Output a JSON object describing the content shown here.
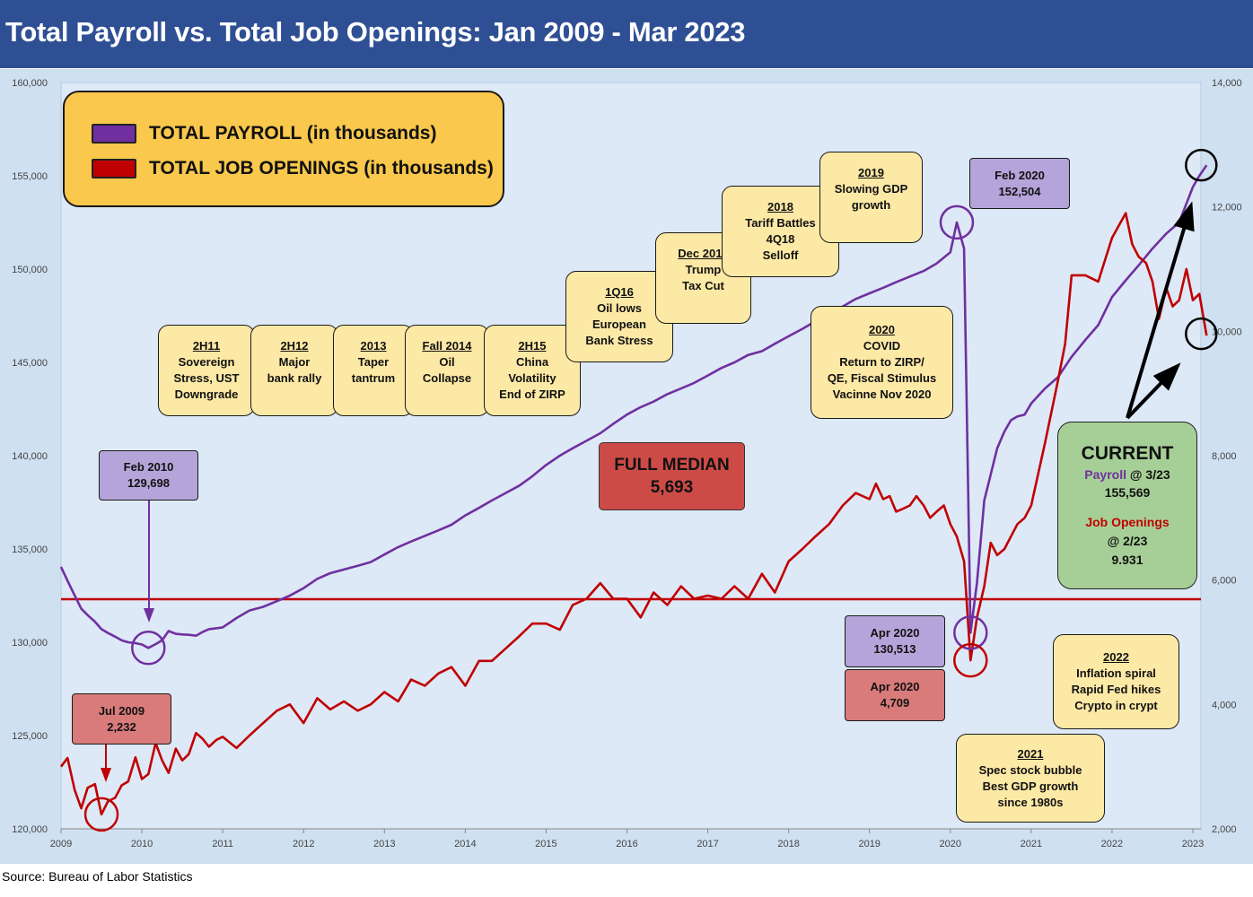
{
  "title": "Total Payroll vs. Total Job Openings: Jan 2009 - Mar 2023",
  "source": "Source: Bureau of Labor Statistics",
  "colors": {
    "header": "#2e4f94",
    "plot_bg": "#dde9f6",
    "frame_bg": "#cfe0f1",
    "payroll": "#7030a0",
    "openings": "#c00000",
    "median_line": "#c00000",
    "legend_bg": "#f9c84c",
    "annotation_bg": "#fde9a6",
    "current_bg": "#a6cf97",
    "median_box_bg": "#cd4b47"
  },
  "legend": {
    "payroll_label": "TOTAL PAYROLL (in thousands)",
    "openings_label": "TOTAL JOB OPENINGS (in thousands)"
  },
  "median": {
    "title": "FULL MEDIAN",
    "value": "5,693"
  },
  "current": {
    "title": "CURRENT",
    "payroll_label": "Payroll",
    "payroll_date": " @ 3/23",
    "payroll_value": "155,569",
    "openings_label": "Job Openings",
    "openings_date": "@ 2/23",
    "openings_value": "9.931"
  },
  "annotations": {
    "a2h11": {
      "head": "2H11",
      "l1": "Sovereign",
      "l2": "Stress, UST",
      "l3": "Downgrade"
    },
    "a2h12": {
      "head": "2H12",
      "l1": "Major",
      "l2": "bank rally"
    },
    "a2013": {
      "head": "2013",
      "l1": "Taper",
      "l2": "tantrum"
    },
    "afall2014": {
      "head": "Fall 2014",
      "l1": "Oil",
      "l2": "Collapse"
    },
    "a2h15": {
      "head": "2H15",
      "l1": "China",
      "l2": "Volatility",
      "l3": "End of ZIRP"
    },
    "a1q16": {
      "head": "1Q16",
      "l1": "Oil lows",
      "l2": "European",
      "l3": "Bank Stress"
    },
    "adec2017": {
      "head": "Dec 2017",
      "l1": "Trump",
      "l2": "Tax Cut"
    },
    "a2018": {
      "head": "2018",
      "l1": "Tariff Battles",
      "l2": "4Q18",
      "l3": "Selloff"
    },
    "a2019": {
      "head": "2019",
      "l1": "Slowing GDP",
      "l2": "growth"
    },
    "a2020": {
      "head": "2020",
      "l1": "COVID",
      "l2": "Return to ZIRP/",
      "l3": "QE, Fiscal Stimulus",
      "l4": "Vacinne Nov 2020"
    },
    "a2021": {
      "head": "2021",
      "l1": "Spec stock bubble",
      "l2": "Best GDP growth",
      "l3": "since 1980s"
    },
    "a2022": {
      "head": "2022",
      "l1": "Inflation spiral",
      "l2": "Rapid Fed hikes",
      "l3": "Crypto in crypt"
    },
    "feb2010": {
      "l1": "Feb 2010",
      "l2": "129,698"
    },
    "feb2020": {
      "l1": "Feb 2020",
      "l2": "152,504"
    },
    "apr2020p": {
      "l1": "Apr 2020",
      "l2": "130,513"
    },
    "apr2020o": {
      "l1": "Apr 2020",
      "l2": "4,709"
    },
    "jul2009": {
      "l1": "Jul 2009",
      "l2": "2,232"
    }
  },
  "chart_data": {
    "type": "line",
    "title": "Total Payroll vs. Total Job Openings: Jan 2009 - Mar 2023",
    "x_tick_labels": [
      "2009",
      "2010",
      "2011",
      "2012",
      "2013",
      "2014",
      "2015",
      "2016",
      "2017",
      "2018",
      "2019",
      "2020",
      "2021",
      "2022",
      "2023"
    ],
    "y_left": {
      "label": "",
      "ylim": [
        120000,
        160000
      ],
      "ticks": [
        "120,000",
        "125,000",
        "130,000",
        "135,000",
        "140,000",
        "145,000",
        "150,000",
        "155,000",
        "160,000"
      ]
    },
    "y_right": {
      "label": "",
      "ylim": [
        2000,
        14000
      ],
      "ticks": [
        "2,000",
        "4,000",
        "6,000",
        "8,000",
        "10,000",
        "12,000",
        "14,000"
      ]
    },
    "grid": false,
    "legend_position": "top-left",
    "median_line": 5693,
    "series": [
      {
        "name": "TOTAL PAYROLL (in thousands)",
        "axis": "left",
        "points": [
          [
            2009.0,
            134040
          ],
          [
            2009.08,
            133300
          ],
          [
            2009.17,
            132500
          ],
          [
            2009.25,
            131800
          ],
          [
            2009.33,
            131450
          ],
          [
            2009.42,
            131100
          ],
          [
            2009.5,
            130700
          ],
          [
            2009.58,
            130500
          ],
          [
            2009.67,
            130300
          ],
          [
            2009.75,
            130100
          ],
          [
            2009.83,
            130000
          ],
          [
            2009.92,
            129950
          ],
          [
            2010.0,
            129880
          ],
          [
            2010.08,
            129698
          ],
          [
            2010.17,
            129900
          ],
          [
            2010.25,
            130100
          ],
          [
            2010.33,
            130600
          ],
          [
            2010.42,
            130450
          ],
          [
            2010.5,
            130420
          ],
          [
            2010.58,
            130400
          ],
          [
            2010.67,
            130350
          ],
          [
            2010.75,
            130550
          ],
          [
            2010.83,
            130700
          ],
          [
            2010.92,
            130750
          ],
          [
            2011.0,
            130800
          ],
          [
            2011.17,
            131300
          ],
          [
            2011.33,
            131700
          ],
          [
            2011.5,
            131900
          ],
          [
            2011.67,
            132200
          ],
          [
            2011.83,
            132500
          ],
          [
            2012.0,
            132900
          ],
          [
            2012.17,
            133400
          ],
          [
            2012.33,
            133700
          ],
          [
            2012.5,
            133900
          ],
          [
            2012.67,
            134100
          ],
          [
            2012.83,
            134300
          ],
          [
            2013.0,
            134700
          ],
          [
            2013.17,
            135100
          ],
          [
            2013.33,
            135400
          ],
          [
            2013.5,
            135700
          ],
          [
            2013.67,
            136000
          ],
          [
            2013.83,
            136300
          ],
          [
            2014.0,
            136800
          ],
          [
            2014.17,
            137200
          ],
          [
            2014.33,
            137600
          ],
          [
            2014.5,
            138000
          ],
          [
            2014.67,
            138400
          ],
          [
            2014.83,
            138900
          ],
          [
            2015.0,
            139500
          ],
          [
            2015.17,
            140000
          ],
          [
            2015.33,
            140400
          ],
          [
            2015.5,
            140800
          ],
          [
            2015.67,
            141200
          ],
          [
            2015.83,
            141700
          ],
          [
            2016.0,
            142200
          ],
          [
            2016.17,
            142600
          ],
          [
            2016.33,
            142900
          ],
          [
            2016.5,
            143300
          ],
          [
            2016.67,
            143600
          ],
          [
            2016.83,
            143900
          ],
          [
            2017.0,
            144300
          ],
          [
            2017.17,
            144700
          ],
          [
            2017.33,
            145000
          ],
          [
            2017.5,
            145400
          ],
          [
            2017.67,
            145600
          ],
          [
            2017.83,
            146000
          ],
          [
            2018.0,
            146400
          ],
          [
            2018.17,
            146800
          ],
          [
            2018.33,
            147200
          ],
          [
            2018.5,
            147600
          ],
          [
            2018.67,
            148000
          ],
          [
            2018.83,
            148400
          ],
          [
            2019.0,
            148700
          ],
          [
            2019.17,
            149000
          ],
          [
            2019.33,
            149300
          ],
          [
            2019.5,
            149600
          ],
          [
            2019.67,
            149900
          ],
          [
            2019.83,
            150300
          ],
          [
            2020.0,
            150900
          ],
          [
            2020.08,
            152504
          ],
          [
            2020.17,
            151100
          ],
          [
            2020.25,
            130513
          ],
          [
            2020.33,
            133200
          ],
          [
            2020.42,
            137600
          ],
          [
            2020.5,
            139000
          ],
          [
            2020.58,
            140400
          ],
          [
            2020.67,
            141300
          ],
          [
            2020.75,
            141900
          ],
          [
            2020.83,
            142100
          ],
          [
            2020.92,
            142200
          ],
          [
            2021.0,
            142800
          ],
          [
            2021.17,
            143600
          ],
          [
            2021.33,
            144200
          ],
          [
            2021.5,
            145300
          ],
          [
            2021.67,
            146200
          ],
          [
            2021.83,
            147000
          ],
          [
            2022.0,
            148500
          ],
          [
            2022.17,
            149400
          ],
          [
            2022.33,
            150200
          ],
          [
            2022.5,
            151100
          ],
          [
            2022.67,
            151900
          ],
          [
            2022.83,
            152500
          ],
          [
            2023.0,
            154400
          ],
          [
            2023.08,
            155000
          ],
          [
            2023.17,
            155569
          ]
        ]
      },
      {
        "name": "TOTAL JOB OPENINGS (in thousands)",
        "axis": "right",
        "points": [
          [
            2009.0,
            3000
          ],
          [
            2009.08,
            3140
          ],
          [
            2009.17,
            2620
          ],
          [
            2009.25,
            2330
          ],
          [
            2009.33,
            2660
          ],
          [
            2009.42,
            2720
          ],
          [
            2009.5,
            2232
          ],
          [
            2009.58,
            2440
          ],
          [
            2009.67,
            2500
          ],
          [
            2009.75,
            2700
          ],
          [
            2009.83,
            2760
          ],
          [
            2009.92,
            3150
          ],
          [
            2010.0,
            2800
          ],
          [
            2010.08,
            2880
          ],
          [
            2010.17,
            3380
          ],
          [
            2010.25,
            3100
          ],
          [
            2010.33,
            2900
          ],
          [
            2010.42,
            3290
          ],
          [
            2010.5,
            3100
          ],
          [
            2010.58,
            3200
          ],
          [
            2010.67,
            3540
          ],
          [
            2010.75,
            3450
          ],
          [
            2010.83,
            3320
          ],
          [
            2010.92,
            3430
          ],
          [
            2011.0,
            3480
          ],
          [
            2011.17,
            3300
          ],
          [
            2011.33,
            3500
          ],
          [
            2011.5,
            3700
          ],
          [
            2011.67,
            3900
          ],
          [
            2011.83,
            4000
          ],
          [
            2012.0,
            3700
          ],
          [
            2012.17,
            4100
          ],
          [
            2012.33,
            3920
          ],
          [
            2012.5,
            4050
          ],
          [
            2012.67,
            3900
          ],
          [
            2012.83,
            4000
          ],
          [
            2013.0,
            4200
          ],
          [
            2013.17,
            4050
          ],
          [
            2013.33,
            4400
          ],
          [
            2013.5,
            4300
          ],
          [
            2013.67,
            4500
          ],
          [
            2013.83,
            4600
          ],
          [
            2014.0,
            4300
          ],
          [
            2014.17,
            4700
          ],
          [
            2014.33,
            4700
          ],
          [
            2014.5,
            4900
          ],
          [
            2014.67,
            5100
          ],
          [
            2014.83,
            5300
          ],
          [
            2015.0,
            5300
          ],
          [
            2015.17,
            5200
          ],
          [
            2015.33,
            5600
          ],
          [
            2015.5,
            5700
          ],
          [
            2015.67,
            5950
          ],
          [
            2015.83,
            5700
          ],
          [
            2016.0,
            5700
          ],
          [
            2016.17,
            5400
          ],
          [
            2016.33,
            5800
          ],
          [
            2016.5,
            5600
          ],
          [
            2016.67,
            5900
          ],
          [
            2016.83,
            5700
          ],
          [
            2017.0,
            5750
          ],
          [
            2017.17,
            5700
          ],
          [
            2017.33,
            5900
          ],
          [
            2017.5,
            5700
          ],
          [
            2017.67,
            6100
          ],
          [
            2017.83,
            5800
          ],
          [
            2018.0,
            6300
          ],
          [
            2018.17,
            6500
          ],
          [
            2018.33,
            6700
          ],
          [
            2018.5,
            6900
          ],
          [
            2018.67,
            7200
          ],
          [
            2018.83,
            7400
          ],
          [
            2019.0,
            7300
          ],
          [
            2019.08,
            7550
          ],
          [
            2019.17,
            7300
          ],
          [
            2019.25,
            7350
          ],
          [
            2019.33,
            7100
          ],
          [
            2019.42,
            7150
          ],
          [
            2019.5,
            7200
          ],
          [
            2019.58,
            7350
          ],
          [
            2019.67,
            7200
          ],
          [
            2019.75,
            7000
          ],
          [
            2019.83,
            7100
          ],
          [
            2019.92,
            7200
          ],
          [
            2020.0,
            6900
          ],
          [
            2020.08,
            6700
          ],
          [
            2020.17,
            6300
          ],
          [
            2020.25,
            4709
          ],
          [
            2020.33,
            5400
          ],
          [
            2020.42,
            5900
          ],
          [
            2020.5,
            6600
          ],
          [
            2020.58,
            6400
          ],
          [
            2020.67,
            6500
          ],
          [
            2020.75,
            6700
          ],
          [
            2020.83,
            6900
          ],
          [
            2020.92,
            7000
          ],
          [
            2021.0,
            7200
          ],
          [
            2021.17,
            8200
          ],
          [
            2021.33,
            9200
          ],
          [
            2021.42,
            9800
          ],
          [
            2021.5,
            10900
          ],
          [
            2021.67,
            10900
          ],
          [
            2021.83,
            10800
          ],
          [
            2022.0,
            11500
          ],
          [
            2022.17,
            11900
          ],
          [
            2022.25,
            11400
          ],
          [
            2022.33,
            11200
          ],
          [
            2022.42,
            11100
          ],
          [
            2022.5,
            10800
          ],
          [
            2022.58,
            10200
          ],
          [
            2022.67,
            10700
          ],
          [
            2022.75,
            10400
          ],
          [
            2022.83,
            10500
          ],
          [
            2022.92,
            11000
          ],
          [
            2023.0,
            10500
          ],
          [
            2023.08,
            10600
          ],
          [
            2023.17,
            9931
          ]
        ]
      }
    ]
  }
}
